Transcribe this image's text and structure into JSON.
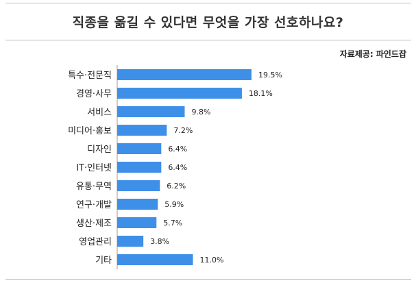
{
  "title": "직종을 옮길 수 있다면 무엇을 가장 선호하나요?",
  "source": "자료제공: 파인드잡",
  "colors": {
    "bar": "#3d8fe8",
    "text": "#222222"
  },
  "chart_data": {
    "type": "bar",
    "orientation": "horizontal",
    "categories": [
      "특수·전문직",
      "경영·사무",
      "서비스",
      "미디어·홍보",
      "디자인",
      "IT·인터넷",
      "유통·무역",
      "연구·개발",
      "생산·제조",
      "영업관리",
      "기타"
    ],
    "values": [
      19.5,
      18.1,
      9.8,
      7.2,
      6.4,
      6.4,
      6.2,
      5.9,
      5.7,
      3.8,
      11.0
    ],
    "value_labels": [
      "19.5%",
      "18.1%",
      "9.8%",
      "7.2%",
      "6.4%",
      "6.4%",
      "6.2%",
      "5.9%",
      "5.7%",
      "3.8%",
      "11.0%"
    ],
    "unit": "%",
    "grid": false,
    "legend": "none"
  }
}
